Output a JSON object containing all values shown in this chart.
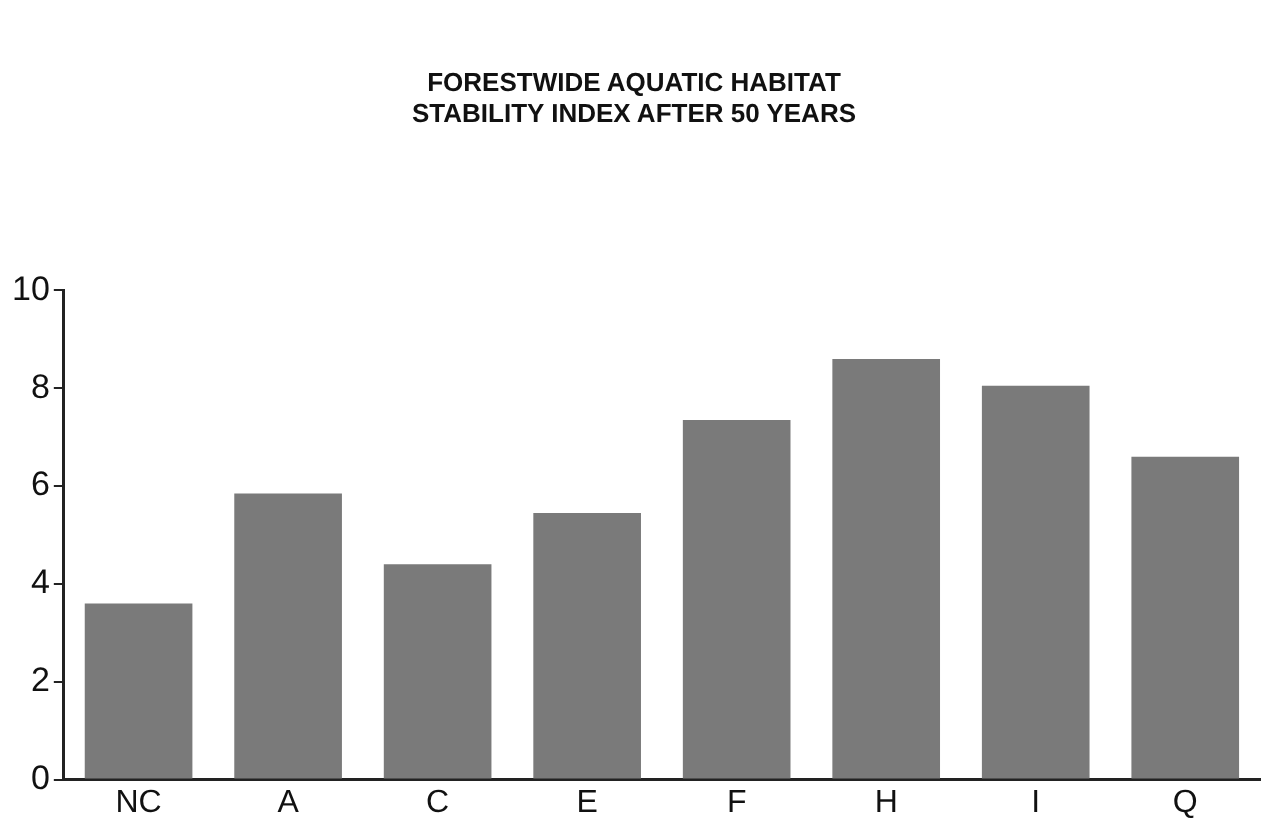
{
  "chart_data": {
    "type": "bar",
    "title": "FORESTWIDE AQUATIC HABITAT\nSTABILITY INDEX AFTER 50 YEARS",
    "categories": [
      "NC",
      "A",
      "C",
      "E",
      "F",
      "H",
      "I",
      "Q"
    ],
    "values": [
      3.6,
      5.85,
      4.4,
      5.45,
      7.35,
      8.6,
      8.05,
      6.6
    ],
    "color": "#7a7a7a",
    "ylim": [
      0,
      10
    ],
    "yticks": [
      0,
      2,
      4,
      6,
      8,
      10
    ],
    "grid": false
  }
}
